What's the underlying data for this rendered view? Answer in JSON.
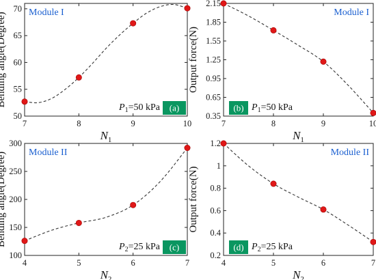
{
  "colors": {
    "curve": "#333333",
    "point": "#e01818",
    "point_edge": "#a00000",
    "module": "#1a5fd0",
    "tag_fill": "#0a9660"
  },
  "chart_data": [
    {
      "type": "scatter",
      "panel": "a",
      "module_label": "Module I",
      "pressure_sym": "P",
      "pressure_sub": "1",
      "pressure_value": "=50 kPa",
      "tag": "(a)",
      "tag_style": "filled",
      "xlabel_sym": "N",
      "xlabel_sub": "1",
      "ylabel": "Bending angle(Degree)",
      "x": [
        7,
        8,
        9,
        10
      ],
      "y": [
        52.7,
        57.2,
        67.3,
        70.1
      ],
      "fit": [
        [
          7,
          52.7
        ],
        [
          7.25,
          52.5
        ],
        [
          7.5,
          53.3
        ],
        [
          7.75,
          55.0
        ],
        [
          8,
          57.2
        ],
        [
          8.25,
          59.8
        ],
        [
          8.5,
          62.6
        ],
        [
          8.75,
          65.1
        ],
        [
          9,
          67.3
        ],
        [
          9.25,
          69.2
        ],
        [
          9.5,
          70.4
        ],
        [
          9.75,
          70.8
        ],
        [
          10,
          70.1
        ]
      ],
      "xlim": [
        7,
        10
      ],
      "ylim": [
        50,
        71
      ],
      "xticks": [
        7,
        8,
        9,
        10
      ],
      "yticks": [
        50,
        55,
        60,
        65,
        70
      ]
    },
    {
      "type": "scatter",
      "panel": "b",
      "module_label": "Module I",
      "pressure_sym": "P",
      "pressure_sub": "1",
      "pressure_value": "=50 kPa",
      "tag": "(b)",
      "tag_style": "inline",
      "xlabel_sym": "N",
      "xlabel_sub": "1",
      "ylabel": "Output force(N)",
      "x": [
        7,
        8,
        9,
        10
      ],
      "y": [
        2.15,
        1.72,
        1.22,
        0.4
      ],
      "fit": [
        [
          7,
          2.15
        ],
        [
          7.5,
          1.95
        ],
        [
          8,
          1.72
        ],
        [
          8.5,
          1.48
        ],
        [
          9,
          1.22
        ],
        [
          9.5,
          0.84
        ],
        [
          10,
          0.4
        ]
      ],
      "xlim": [
        7,
        10
      ],
      "ylim": [
        0.35,
        2.15
      ],
      "xticks": [
        7,
        8,
        9,
        10
      ],
      "yticks": [
        "0.35",
        "0.65",
        "0.95",
        "1.25",
        "1.55",
        "1.85",
        "2.15"
      ]
    },
    {
      "type": "scatter",
      "panel": "c",
      "module_label": "Module II",
      "pressure_sym": "P",
      "pressure_sub": "2",
      "pressure_value": "=25 kPa",
      "tag": "(c)",
      "tag_style": "filled",
      "xlabel_sym": "N",
      "xlabel_sub": "2",
      "ylabel": "Bending angle(Degree)",
      "x": [
        4,
        5,
        6,
        7
      ],
      "y": [
        126,
        158,
        190,
        292
      ],
      "fit": [
        [
          4,
          126
        ],
        [
          4.5,
          145
        ],
        [
          5,
          158
        ],
        [
          5.5,
          168
        ],
        [
          6,
          190
        ],
        [
          6.5,
          232
        ],
        [
          7,
          292
        ]
      ],
      "xlim": [
        4,
        7
      ],
      "ylim": [
        100,
        300
      ],
      "xticks": [
        4,
        5,
        6,
        7
      ],
      "yticks": [
        100,
        150,
        200,
        250,
        300
      ]
    },
    {
      "type": "scatter",
      "panel": "d",
      "module_label": "Module II",
      "pressure_sym": "P",
      "pressure_sub": "2",
      "pressure_value": "=25 kPa",
      "tag": "(d)",
      "tag_style": "inline",
      "xlabel_sym": "N",
      "xlabel_sub": "2",
      "ylabel": "Output force(N)",
      "x": [
        4,
        5,
        6,
        7
      ],
      "y": [
        1.2,
        0.84,
        0.61,
        0.32
      ],
      "fit": [
        [
          4,
          1.2
        ],
        [
          4.5,
          1.0
        ],
        [
          5,
          0.84
        ],
        [
          5.5,
          0.72
        ],
        [
          6,
          0.61
        ],
        [
          6.5,
          0.47
        ],
        [
          7,
          0.32
        ]
      ],
      "xlim": [
        4,
        7
      ],
      "ylim": [
        0.2,
        1.2
      ],
      "xticks": [
        4,
        5,
        6,
        7
      ],
      "yticks": [
        "0.2",
        "0.4",
        "0.6",
        "0.8",
        "1",
        "1.2"
      ]
    }
  ]
}
